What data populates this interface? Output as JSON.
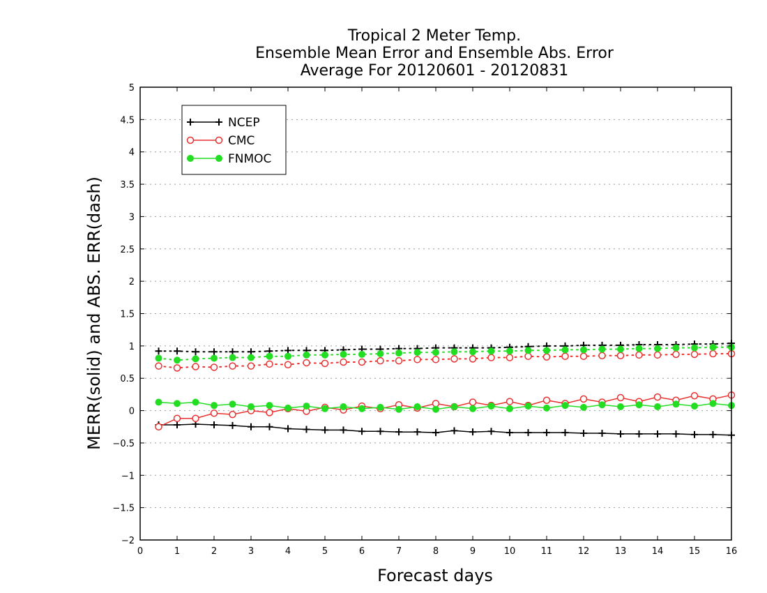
{
  "chart_data": {
    "type": "line",
    "title_lines": [
      "Tropical 2 Meter Temp.",
      "Ensemble Mean Error and Ensemble Abs. Error",
      "Average For 20120601 - 20120831"
    ],
    "xlabel": "Forecast days",
    "ylabel": "MERR(solid) and ABS. ERR(dash)",
    "xlim": [
      0,
      16
    ],
    "ylim": [
      -2,
      5
    ],
    "xticks": [
      0,
      1,
      2,
      3,
      4,
      5,
      6,
      7,
      8,
      9,
      10,
      11,
      12,
      13,
      14,
      15,
      16
    ],
    "xtick_labels": [
      "0",
      "1",
      "2",
      "3",
      "4",
      "5",
      "6",
      "7",
      "8",
      "9",
      "10",
      "11",
      "12",
      "13",
      "14",
      "15",
      "16"
    ],
    "yticks": [
      -2,
      -1.5,
      -1,
      -0.5,
      0,
      0.5,
      1,
      1.5,
      2,
      2.5,
      3,
      3.5,
      4,
      4.5,
      5
    ],
    "ytick_labels": [
      "−2",
      "−1.5",
      "−1",
      "−0.5",
      "0",
      "0.5",
      "1",
      "1.5",
      "2",
      "2.5",
      "3",
      "3.5",
      "4",
      "4.5",
      "5"
    ],
    "grid": true,
    "legend_position": "top-left",
    "x": [
      0.5,
      1,
      1.5,
      2,
      2.5,
      3,
      3.5,
      4,
      4.5,
      5,
      5.5,
      6,
      6.5,
      7,
      7.5,
      8,
      8.5,
      9,
      9.5,
      10,
      10.5,
      11,
      11.5,
      12,
      12.5,
      13,
      13.5,
      14,
      14.5,
      15,
      15.5,
      16
    ],
    "series": [
      {
        "name": "NCEP",
        "marker": "plus",
        "color": "#000000",
        "mean_error": [
          -0.22,
          -0.22,
          -0.21,
          -0.22,
          -0.23,
          -0.25,
          -0.25,
          -0.28,
          -0.29,
          -0.3,
          -0.3,
          -0.32,
          -0.32,
          -0.33,
          -0.33,
          -0.34,
          -0.31,
          -0.33,
          -0.32,
          -0.34,
          -0.34,
          -0.34,
          -0.34,
          -0.35,
          -0.35,
          -0.36,
          -0.36,
          -0.36,
          -0.36,
          -0.37,
          -0.37,
          -0.38
        ],
        "abs_error": [
          0.92,
          0.92,
          0.91,
          0.91,
          0.91,
          0.91,
          0.92,
          0.93,
          0.93,
          0.93,
          0.94,
          0.95,
          0.95,
          0.96,
          0.96,
          0.97,
          0.97,
          0.97,
          0.97,
          0.98,
          0.99,
          1.0,
          1.0,
          1.01,
          1.01,
          1.01,
          1.02,
          1.02,
          1.02,
          1.03,
          1.03,
          1.04
        ]
      },
      {
        "name": "CMC",
        "marker": "open-circle",
        "color": "#e83030",
        "mean_error": [
          -0.25,
          -0.12,
          -0.12,
          -0.04,
          -0.06,
          0.0,
          -0.03,
          0.03,
          -0.01,
          0.05,
          0.01,
          0.07,
          0.03,
          0.09,
          0.04,
          0.11,
          0.06,
          0.13,
          0.08,
          0.14,
          0.08,
          0.16,
          0.11,
          0.18,
          0.13,
          0.2,
          0.14,
          0.21,
          0.16,
          0.23,
          0.18,
          0.24
        ],
        "abs_error": [
          0.69,
          0.66,
          0.68,
          0.67,
          0.69,
          0.69,
          0.72,
          0.71,
          0.74,
          0.73,
          0.75,
          0.75,
          0.77,
          0.77,
          0.79,
          0.79,
          0.8,
          0.8,
          0.82,
          0.82,
          0.84,
          0.83,
          0.84,
          0.84,
          0.85,
          0.85,
          0.86,
          0.86,
          0.87,
          0.87,
          0.88,
          0.88
        ]
      },
      {
        "name": "FNMOC",
        "marker": "filled-circle",
        "color": "#22dd22",
        "mean_error": [
          0.13,
          0.11,
          0.13,
          0.08,
          0.1,
          0.06,
          0.08,
          0.04,
          0.07,
          0.03,
          0.06,
          0.03,
          0.05,
          0.02,
          0.06,
          0.02,
          0.06,
          0.03,
          0.07,
          0.03,
          0.07,
          0.04,
          0.08,
          0.05,
          0.09,
          0.06,
          0.09,
          0.06,
          0.1,
          0.07,
          0.11,
          0.08
        ],
        "abs_error": [
          0.81,
          0.78,
          0.8,
          0.81,
          0.82,
          0.82,
          0.84,
          0.84,
          0.86,
          0.86,
          0.87,
          0.87,
          0.88,
          0.89,
          0.9,
          0.9,
          0.91,
          0.91,
          0.92,
          0.92,
          0.93,
          0.93,
          0.94,
          0.94,
          0.95,
          0.95,
          0.96,
          0.96,
          0.97,
          0.97,
          0.98,
          0.98
        ]
      }
    ]
  }
}
